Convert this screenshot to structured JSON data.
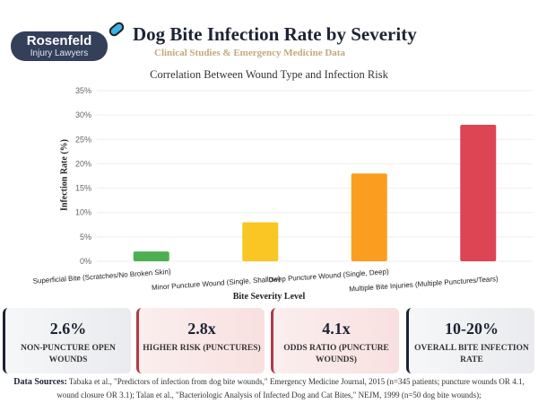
{
  "logo": {
    "line1": "Rosenfeld",
    "line2": "Injury Lawyers"
  },
  "header": {
    "title": "Dog Bite Infection Rate by Severity",
    "subtitle": "Clinical Studies & Emergency Medicine Data"
  },
  "chart_data": {
    "type": "bar",
    "title": "Correlation Between Wound Type and Infection Risk",
    "xlabel": "Bite Severity Level",
    "ylabel": "Infection Rate (%)",
    "ylim": [
      0,
      35
    ],
    "yticks": [
      "0%",
      "5%",
      "10%",
      "15%",
      "20%",
      "25%",
      "30%",
      "35%"
    ],
    "categories": [
      "Superficial Bite (Scratches/No Broken Skin)",
      "Minor Puncture Wound (Single, Shallow)",
      "Deep Puncture Wound (Single, Deep)",
      "Multiple Bite Injuries (Multiple Punctures/Tears)"
    ],
    "values": [
      2,
      8,
      18,
      28
    ],
    "colors": [
      "#4caf50",
      "#f9c623",
      "#fb9e1f",
      "#dd4454"
    ],
    "grid": true
  },
  "cards": [
    {
      "value": "2.6%",
      "label": "NON-PUNCTURE OPEN WOUNDS"
    },
    {
      "value": "2.8x",
      "label": "HIGHER RISK (PUNCTURES)"
    },
    {
      "value": "4.1x",
      "label": "ODDS RATIO (PUNCTURE WOUNDS)"
    },
    {
      "value": "10-20%",
      "label": "OVERALL BITE INFECTION RATE"
    }
  ],
  "sources": {
    "label": "Data Sources:",
    "text": "Tabaka et al., \"Predictors of infection from dog bite wounds,\" Emergency Medicine Journal, 2015 (n=345 patients; puncture wounds OR 4.1, wound closure OR 3.1); Talan et al., \"Bacteriologic Analysis of Infected Dog and Cat Bites,\" NEJM, 1999 (n=50 dog bite wounds);"
  }
}
